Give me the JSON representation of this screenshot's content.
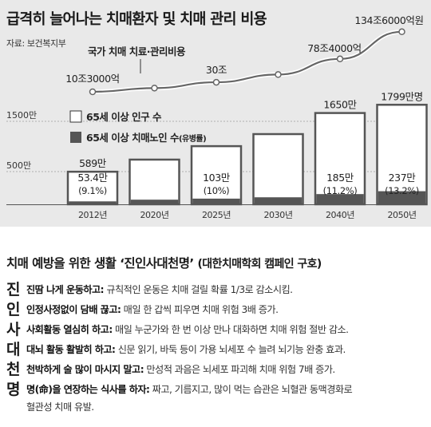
{
  "chart": {
    "title": "급격히 늘어나는 치매환자 및 치매 관리 비용",
    "source": "자료: 보건복지부",
    "cost_line_label": "국가 치매 치료·관리비용",
    "gridlines": [
      {
        "label": "1500만",
        "value": 1500
      },
      {
        "label": "500만",
        "value": 500
      }
    ],
    "legend": {
      "population": "65세 이상 인구 수",
      "dementia": "65세 이상 치매노인 수",
      "dementia_note": "(유병률)"
    }
  },
  "chart_data": {
    "type": "bar",
    "categories": [
      "2012년",
      "2020년",
      "2025년",
      "2030년",
      "2040년",
      "2050년"
    ],
    "series": [
      {
        "name": "65세 이상 인구 수",
        "values": [
          589,
          808,
          1051,
          1269,
          1650,
          1799
        ]
      },
      {
        "name": "65세 이상 치매노인 수",
        "values": [
          53.4,
          84,
          103,
          127,
          185,
          237
        ]
      }
    ],
    "cost_series": {
      "name": "국가 치매 치료·관리비용",
      "values": [
        1.03,
        1.8,
        3.0,
        4.6,
        7.84,
        13.46
      ],
      "labels": [
        "10조3000억",
        "",
        "30조",
        "",
        "78조4000억",
        "134조6000억원"
      ]
    },
    "population_labels": [
      "589만",
      "",
      "",
      "",
      "1650만",
      "1799만명"
    ],
    "dementia_labels": [
      "53.4만",
      "",
      "103만",
      "",
      "185만",
      "237만"
    ],
    "rate_labels": [
      "(9.1%)",
      "",
      "(10%)",
      "",
      "(11.2%)",
      "(13.2%)"
    ],
    "ylim": [
      0,
      1800
    ]
  },
  "campaign": {
    "title": "치매 예방을 위한 생활 ‘진인사대천명’",
    "title_sub": "(대한치매학회 캠페인 구호)",
    "rows": [
      {
        "letter": "진",
        "head": "진땀 나게 운동하고:",
        "body": " 규칙적인 운동은 치매 걸릴 확률 1/3로 감소시킴."
      },
      {
        "letter": "인",
        "head": "인정사정없이 담배 끊고:",
        "body": " 매일 한 갑씩 피우면 치매 위험 3배 증가."
      },
      {
        "letter": "사",
        "head": "사회활동 열심히 하고:",
        "body": " 매일 누군가와 한 번 이상 만나 대화하면 치매 위험 절반 감소."
      },
      {
        "letter": "대",
        "head": "대뇌 활동 활발히 하고:",
        "body": " 신문 읽기, 바둑 등이 가용 뇌세포 수 늘려 뇌기능 완충 효과."
      },
      {
        "letter": "천",
        "head": "천박하게 술 많이 마시지 말고:",
        "body": " 만성적 과음은 뇌세포 파괴해 치매 위험 7배 증가."
      },
      {
        "letter": "명",
        "head": "명(命)을 연장하는 식사를 하자:",
        "body": " 짜고, 기름지고, 많이 먹는 습관은 뇌혈관 동맥경화로",
        "cont": "혈관성 치매 유발."
      }
    ]
  }
}
